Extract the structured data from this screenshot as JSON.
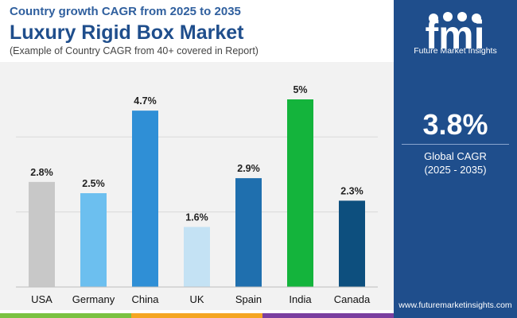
{
  "header": {
    "top_subtitle": "Country growth CAGR from 2025 to 2035",
    "title": "Luxury Rigid Box Market",
    "subtitle": "(Example of Country CAGR from 40+ covered in Report)"
  },
  "sidebar": {
    "logo_text": "fmi",
    "logo_subtext": "Future Market Insights",
    "cagr_value": "3.8%",
    "cagr_label": "Global CAGR",
    "cagr_period": "(2025 - 2035)",
    "website": "www.futuremarketinsights.com"
  },
  "colors": {
    "brand": "#1f4e8c",
    "accent_green": "#7bc242",
    "accent_orange": "#f5a623",
    "accent_purple": "#7b3fa0"
  },
  "chart_data": {
    "type": "bar",
    "categories": [
      "USA",
      "Germany",
      "China",
      "UK",
      "Spain",
      "India",
      "Canada"
    ],
    "values": [
      2.8,
      2.5,
      4.7,
      1.6,
      2.9,
      5.0,
      2.3
    ],
    "data_labels": [
      "2.8%",
      "2.5%",
      "4.7%",
      "1.6%",
      "2.9%",
      "5%",
      "2.3%"
    ],
    "colors": [
      "#c8c8c8",
      "#6cbfef",
      "#2f8fd6",
      "#c4e2f4",
      "#1f6fae",
      "#14b43c",
      "#0d4f7e"
    ],
    "ylim": [
      0,
      5.0
    ],
    "grid": true,
    "legend": "none"
  }
}
